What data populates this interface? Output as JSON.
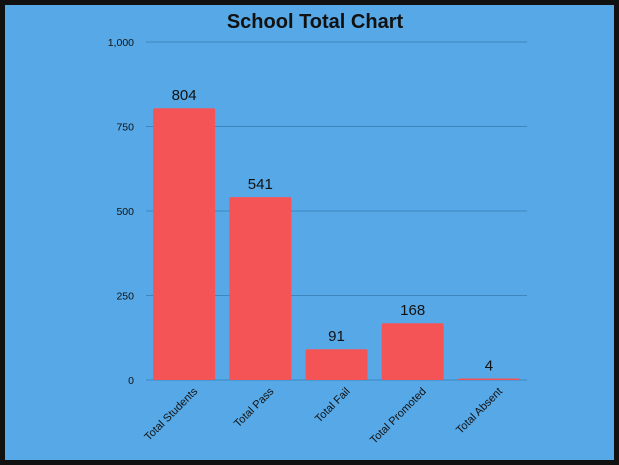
{
  "chart_data": {
    "type": "bar",
    "title": "School Total Chart",
    "categories": [
      "Total Students",
      "Total Pass",
      "Total Fail",
      "Total Promoted",
      "Total Absent"
    ],
    "values": [
      804,
      541,
      91,
      168,
      4
    ],
    "data_labels": [
      "804",
      "541",
      "91",
      "168",
      "4"
    ],
    "ylim": [
      0,
      1000
    ],
    "yticks": [
      0,
      250,
      500,
      750,
      1000
    ],
    "ytick_labels": [
      "0",
      "250",
      "500",
      "750",
      "1,000"
    ],
    "xlabel": "",
    "ylabel": "",
    "grid": true,
    "legend": "none"
  },
  "colors": {
    "background": "#56a8e6",
    "border": "#111111",
    "bar": "#f55456",
    "gridline": "#3f86bf",
    "text": "#111111"
  }
}
